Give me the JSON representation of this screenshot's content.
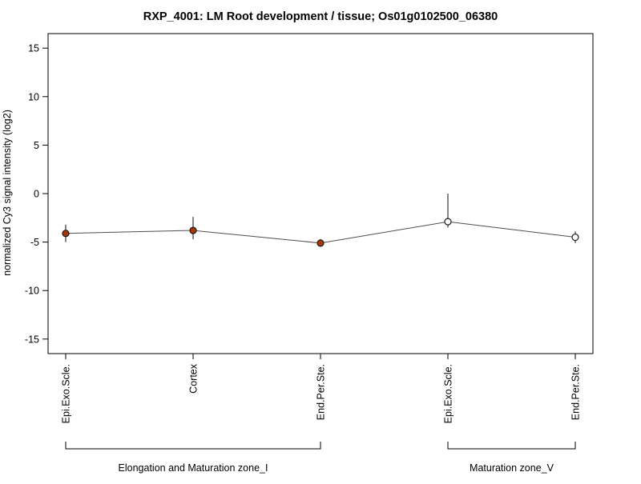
{
  "chart_data": {
    "type": "line",
    "title": "RXP_4001: LM Root development / tissue; Os01g0102500_06380",
    "ylabel": "normalized Cy3 signal intensity (log2)",
    "xlabel": "",
    "ylim": [
      -16.5,
      16.5
    ],
    "yticks": [
      -15,
      -10,
      -5,
      0,
      5,
      10,
      15
    ],
    "grid": false,
    "legend": "none",
    "categories": [
      "Epi.Exo.Scle.",
      "Cortex",
      "End.Per.Ste.",
      "Epi.Exo.Scle.",
      "End.Per.Ste."
    ],
    "series": [
      {
        "name": "normalized Cy3 signal intensity (log2)",
        "values": [
          -4.1,
          -3.8,
          -5.1,
          -2.9,
          -4.5
        ],
        "error_low": [
          -5.0,
          -4.7,
          -5.5,
          -3.5,
          -5.1
        ],
        "error_high": [
          -3.2,
          -2.4,
          -4.7,
          0.0,
          -3.9
        ],
        "marker_filled": [
          true,
          true,
          true,
          false,
          false
        ]
      }
    ],
    "groups": [
      {
        "label": "Elongation and Maturation zone_I",
        "start_index": 0,
        "end_index": 2
      },
      {
        "label": "Maturation zone_V",
        "start_index": 3,
        "end_index": 4
      }
    ],
    "colors": {
      "marker_fill": "#a63603",
      "marker_open_fill": "#ffffff",
      "marker_stroke": "#1a1a1a",
      "line": "#4d4d4d",
      "error_bar": "#333333",
      "axis": "#000000"
    }
  }
}
